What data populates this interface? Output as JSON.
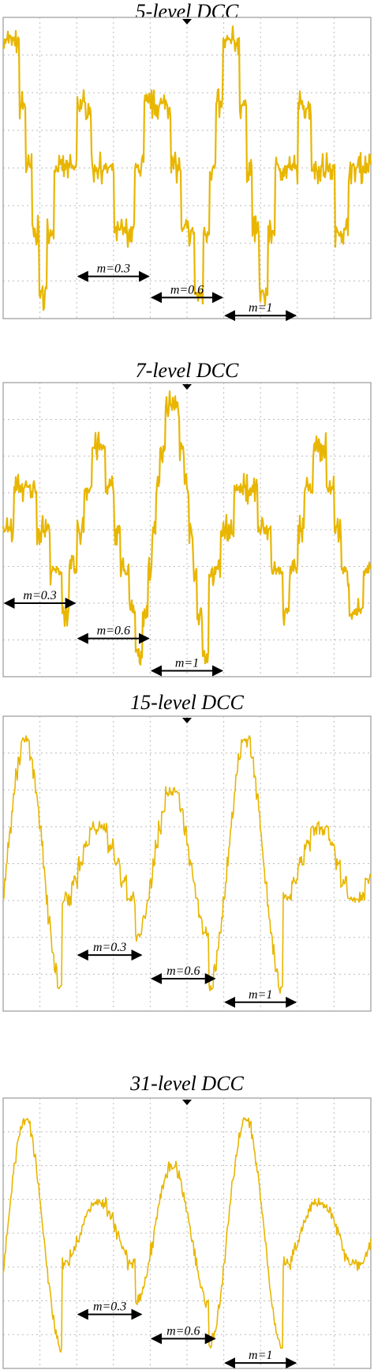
{
  "panels": [
    {
      "title": "5-level DCC",
      "annotations": [
        "m=0.3",
        "m=0.6",
        "m=1"
      ]
    },
    {
      "title": "7-level DCC",
      "annotations": [
        "m=0.3",
        "m=0.6",
        "m=1"
      ]
    },
    {
      "title": "15-level DCC",
      "annotations": [
        "m=0.3",
        "m=0.6",
        "m=1"
      ]
    },
    {
      "title": "31-level DCC",
      "annotations": [
        "m=0.3",
        "m=0.6",
        "m=1"
      ]
    }
  ]
}
